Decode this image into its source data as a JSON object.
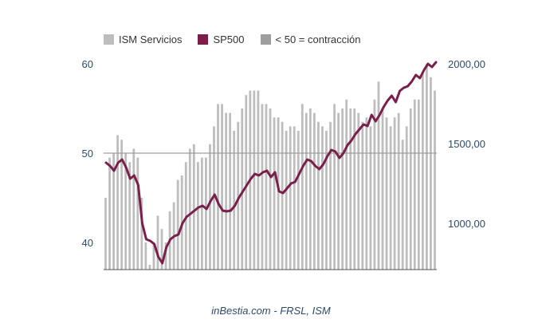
{
  "legend": {
    "ism_label": "ISM Servicios",
    "sp_label": "SP500",
    "contraction_label": "< 50 = contracción"
  },
  "source": "inBestia.com - FRSL, ISM",
  "colors": {
    "ism_bar": "#bdbdbd",
    "sp500_line": "#7a1f4a",
    "contraction_swatch": "#9e9e9e",
    "reference_line": "#9e9e9e",
    "axis_text": "#2d4a6b"
  },
  "chart_data": {
    "type": "bar+line",
    "title": "",
    "left_axis": {
      "ticks": [
        "60",
        "50",
        "40"
      ],
      "tick_values": [
        60,
        50,
        40
      ],
      "ylim": [
        37,
        61
      ]
    },
    "right_axis": {
      "ticks": [
        "2000,00",
        "1500,00",
        "1000,00"
      ],
      "tick_values": [
        2000,
        1500,
        1000
      ],
      "ylim": [
        700,
        2080
      ]
    },
    "reference_line": 50,
    "series": [
      {
        "name": "ISM Servicios",
        "type": "bar",
        "axis": "left",
        "values": [
          45,
          49.5,
          50,
          52,
          51.5,
          50,
          49,
          50.5,
          49.5,
          45,
          40,
          37.5,
          40,
          43,
          41.5,
          40,
          43.5,
          44.5,
          47,
          47.5,
          49,
          50.5,
          51,
          49,
          49.5,
          49.5,
          51,
          53,
          55.5,
          55.5,
          54.5,
          54.5,
          52.5,
          53.5,
          55,
          56.5,
          57,
          57,
          57,
          55.5,
          55.5,
          55,
          54,
          54,
          53.5,
          52.5,
          53,
          53,
          52.5,
          55.5,
          54.5,
          55,
          54.5,
          53.5,
          53,
          52.5,
          53.5,
          55.5,
          54.5,
          55,
          56,
          55,
          55,
          54.5,
          53.5,
          54,
          53,
          56,
          58,
          55,
          54,
          53,
          54,
          54.5,
          51.5,
          53,
          55,
          56,
          56,
          59,
          60,
          58.5,
          57
        ]
      },
      {
        "name": "SP500",
        "type": "line",
        "axis": "right",
        "values": [
          1380,
          1360,
          1330,
          1380,
          1400,
          1350,
          1280,
          1300,
          1240,
          1000,
          900,
          890,
          870,
          790,
          750,
          850,
          900,
          920,
          930,
          1000,
          1040,
          1060,
          1080,
          1100,
          1110,
          1090,
          1140,
          1180,
          1120,
          1080,
          1075,
          1080,
          1110,
          1160,
          1200,
          1240,
          1280,
          1310,
          1300,
          1320,
          1330,
          1290,
          1320,
          1200,
          1190,
          1220,
          1250,
          1260,
          1310,
          1360,
          1400,
          1390,
          1360,
          1340,
          1370,
          1420,
          1460,
          1450,
          1410,
          1440,
          1490,
          1520,
          1560,
          1590,
          1620,
          1610,
          1680,
          1640,
          1680,
          1730,
          1770,
          1800,
          1760,
          1830,
          1850,
          1860,
          1890,
          1930,
          1910,
          1960,
          2000,
          1980,
          2010
        ]
      }
    ]
  }
}
